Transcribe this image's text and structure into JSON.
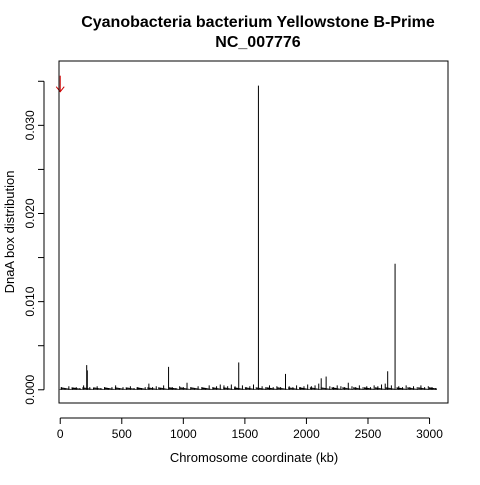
{
  "chart_data": {
    "type": "bar",
    "title_line1": "Cyanobacteria bacterium Yellowstone B-Prime",
    "title_line2": "NC_007776",
    "xlabel": "Chromosome coordinate (kb)",
    "ylabel": "DnaA box distribution",
    "xlim": [
      -10,
      3150
    ],
    "ylim": [
      -0.0015,
      0.0373
    ],
    "x_ticks": [
      {
        "value": 0,
        "label": "0"
      },
      {
        "value": 500,
        "label": "500"
      },
      {
        "value": 1000,
        "label": "1000"
      },
      {
        "value": 1500,
        "label": "1500"
      },
      {
        "value": 2000,
        "label": "2000"
      },
      {
        "value": 2500,
        "label": "2500"
      },
      {
        "value": 3000,
        "label": "3000"
      }
    ],
    "y_ticks": [
      {
        "value": 0.0,
        "label": "0.000"
      },
      {
        "value": 0.005,
        "label": ""
      },
      {
        "value": 0.01,
        "label": "0.010"
      },
      {
        "value": 0.015,
        "label": ""
      },
      {
        "value": 0.02,
        "label": "0.020"
      },
      {
        "value": 0.025,
        "label": ""
      },
      {
        "value": 0.03,
        "label": "0.030"
      },
      {
        "value": 0.035,
        "label": ""
      }
    ],
    "marker": {
      "x": 0,
      "y": 0.0345,
      "color": "#cc0000",
      "shape": "down-arrow"
    },
    "bar_color": "#000000",
    "grid": false,
    "peaks": [
      {
        "x": 215,
        "y": 0.0028
      },
      {
        "x": 220,
        "y": 0.0022
      },
      {
        "x": 880,
        "y": 0.0026
      },
      {
        "x": 1450,
        "y": 0.0031
      },
      {
        "x": 1610,
        "y": 0.0345
      },
      {
        "x": 1830,
        "y": 0.0018
      },
      {
        "x": 2120,
        "y": 0.0013
      },
      {
        "x": 2160,
        "y": 0.0015
      },
      {
        "x": 2660,
        "y": 0.0021
      },
      {
        "x": 2720,
        "y": 0.0143
      }
    ],
    "small_bars": [
      {
        "x": 10,
        "y": 0.0003
      },
      {
        "x": 40,
        "y": 0.0002
      },
      {
        "x": 70,
        "y": 0.0004
      },
      {
        "x": 100,
        "y": 0.0002
      },
      {
        "x": 130,
        "y": 0.0003
      },
      {
        "x": 160,
        "y": 0.0002
      },
      {
        "x": 190,
        "y": 0.0005
      },
      {
        "x": 240,
        "y": 0.0003
      },
      {
        "x": 270,
        "y": 0.0002
      },
      {
        "x": 300,
        "y": 0.0004
      },
      {
        "x": 330,
        "y": 0.0002
      },
      {
        "x": 360,
        "y": 0.0003
      },
      {
        "x": 390,
        "y": 0.0002
      },
      {
        "x": 420,
        "y": 0.0003
      },
      {
        "x": 450,
        "y": 0.0005
      },
      {
        "x": 480,
        "y": 0.0002
      },
      {
        "x": 510,
        "y": 0.0003
      },
      {
        "x": 540,
        "y": 0.0002
      },
      {
        "x": 570,
        "y": 0.0004
      },
      {
        "x": 600,
        "y": 0.0002
      },
      {
        "x": 630,
        "y": 0.0003
      },
      {
        "x": 660,
        "y": 0.0002
      },
      {
        "x": 690,
        "y": 0.0003
      },
      {
        "x": 720,
        "y": 0.0007
      },
      {
        "x": 750,
        "y": 0.0003
      },
      {
        "x": 780,
        "y": 0.0004
      },
      {
        "x": 810,
        "y": 0.0002
      },
      {
        "x": 840,
        "y": 0.0005
      },
      {
        "x": 910,
        "y": 0.0003
      },
      {
        "x": 940,
        "y": 0.0002
      },
      {
        "x": 970,
        "y": 0.0004
      },
      {
        "x": 1000,
        "y": 0.0003
      },
      {
        "x": 1030,
        "y": 0.0008
      },
      {
        "x": 1060,
        "y": 0.0003
      },
      {
        "x": 1090,
        "y": 0.0002
      },
      {
        "x": 1120,
        "y": 0.0004
      },
      {
        "x": 1150,
        "y": 0.0003
      },
      {
        "x": 1180,
        "y": 0.0002
      },
      {
        "x": 1210,
        "y": 0.0005
      },
      {
        "x": 1240,
        "y": 0.0003
      },
      {
        "x": 1270,
        "y": 0.0004
      },
      {
        "x": 1300,
        "y": 0.0006
      },
      {
        "x": 1330,
        "y": 0.0005
      },
      {
        "x": 1360,
        "y": 0.0004
      },
      {
        "x": 1390,
        "y": 0.0006
      },
      {
        "x": 1420,
        "y": 0.0004
      },
      {
        "x": 1480,
        "y": 0.0005
      },
      {
        "x": 1510,
        "y": 0.0003
      },
      {
        "x": 1540,
        "y": 0.0004
      },
      {
        "x": 1570,
        "y": 0.0006
      },
      {
        "x": 1640,
        "y": 0.0004
      },
      {
        "x": 1670,
        "y": 0.0003
      },
      {
        "x": 1700,
        "y": 0.0005
      },
      {
        "x": 1730,
        "y": 0.0003
      },
      {
        "x": 1760,
        "y": 0.0004
      },
      {
        "x": 1790,
        "y": 0.0003
      },
      {
        "x": 1860,
        "y": 0.0004
      },
      {
        "x": 1890,
        "y": 0.0003
      },
      {
        "x": 1920,
        "y": 0.0005
      },
      {
        "x": 1950,
        "y": 0.0003
      },
      {
        "x": 1980,
        "y": 0.0004
      },
      {
        "x": 2010,
        "y": 0.0006
      },
      {
        "x": 2040,
        "y": 0.0004
      },
      {
        "x": 2070,
        "y": 0.0005
      },
      {
        "x": 2100,
        "y": 0.0007
      },
      {
        "x": 2190,
        "y": 0.0004
      },
      {
        "x": 2220,
        "y": 0.0003
      },
      {
        "x": 2250,
        "y": 0.0005
      },
      {
        "x": 2280,
        "y": 0.0004
      },
      {
        "x": 2310,
        "y": 0.0003
      },
      {
        "x": 2340,
        "y": 0.0008
      },
      {
        "x": 2370,
        "y": 0.0004
      },
      {
        "x": 2400,
        "y": 0.0003
      },
      {
        "x": 2430,
        "y": 0.0005
      },
      {
        "x": 2460,
        "y": 0.0003
      },
      {
        "x": 2490,
        "y": 0.0004
      },
      {
        "x": 2520,
        "y": 0.0003
      },
      {
        "x": 2550,
        "y": 0.0005
      },
      {
        "x": 2580,
        "y": 0.0004
      },
      {
        "x": 2610,
        "y": 0.0006
      },
      {
        "x": 2640,
        "y": 0.0007
      },
      {
        "x": 2690,
        "y": 0.0005
      },
      {
        "x": 2750,
        "y": 0.0004
      },
      {
        "x": 2780,
        "y": 0.0003
      },
      {
        "x": 2810,
        "y": 0.0005
      },
      {
        "x": 2840,
        "y": 0.0003
      },
      {
        "x": 2870,
        "y": 0.0004
      },
      {
        "x": 2900,
        "y": 0.0003
      },
      {
        "x": 2930,
        "y": 0.0005
      },
      {
        "x": 2960,
        "y": 0.0003
      },
      {
        "x": 2990,
        "y": 0.0004
      },
      {
        "x": 3020,
        "y": 0.0003
      },
      {
        "x": 3050,
        "y": 0.0002
      }
    ]
  }
}
